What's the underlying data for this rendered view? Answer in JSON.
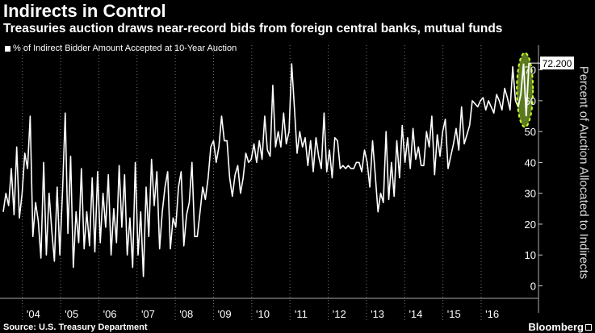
{
  "header": {
    "title": "Indirects in Control",
    "subtitle": "Treasuries auction draws near-record bids from foreign central banks, mutual funds"
  },
  "footer": {
    "source": "Source: U.S. Treasury Department",
    "brand": "Bloomberg"
  },
  "colors": {
    "background": "#000000",
    "line": "#ffffff",
    "highlight_fill": "#6b8e23",
    "highlight_stroke": "#ccff33"
  },
  "chart_data": {
    "type": "line",
    "title": "Indirects in Control",
    "subtitle": "Treasuries auction draws near-record bids from foreign central banks, mutual funds",
    "ylabel": "Percent of Auction Allocated to Indirects",
    "xlabel": "",
    "ylim": [
      -3,
      78
    ],
    "yticks": [
      0,
      10,
      20,
      30,
      40,
      50,
      60,
      70
    ],
    "xlim": [
      2003.0,
      2017.0
    ],
    "xticks": [
      {
        "label": "'04",
        "x": 2004.0
      },
      {
        "label": "'05",
        "x": 2005.0
      },
      {
        "label": "'06",
        "x": 2006.0
      },
      {
        "label": "'07",
        "x": 2007.0
      },
      {
        "label": "'08",
        "x": 2008.0
      },
      {
        "label": "'09",
        "x": 2009.0
      },
      {
        "label": "'10",
        "x": 2010.0
      },
      {
        "label": "'11",
        "x": 2011.0
      },
      {
        "label": "'12",
        "x": 2012.0
      },
      {
        "label": "'13",
        "x": 2013.0
      },
      {
        "label": "'14",
        "x": 2014.0
      },
      {
        "label": "'15",
        "x": 2015.0
      },
      {
        "label": "'16",
        "x": 2016.0
      }
    ],
    "grid": false,
    "legend_position": "top-left",
    "series": [
      {
        "name": "% of Indirect Bidder Amount Accepted at 10-Year Auction",
        "values": [
          24,
          30,
          26,
          38,
          23,
          45,
          22,
          30,
          43,
          38,
          55,
          16,
          27,
          21,
          9,
          40,
          10,
          30,
          18,
          8,
          32,
          10,
          31,
          56,
          17,
          42,
          6,
          24,
          14,
          38,
          12,
          24,
          13,
          35,
          11,
          37,
          14,
          30,
          19,
          36,
          10,
          25,
          14,
          39,
          19,
          36,
          10,
          22,
          6,
          40,
          10,
          24,
          3,
          32,
          16,
          41,
          26,
          37,
          12,
          24,
          32,
          37,
          12,
          22,
          19,
          32,
          37,
          13,
          23,
          27,
          40,
          16,
          16,
          24,
          32,
          28,
          35,
          45,
          47,
          40,
          45,
          55,
          47,
          47,
          35,
          29,
          36,
          39,
          30,
          35,
          43,
          40,
          41,
          46,
          40,
          47,
          41,
          55,
          44,
          42,
          65,
          45,
          50,
          45,
          56,
          46,
          50,
          72,
          58,
          43,
          50,
          45,
          48,
          39,
          47,
          37,
          48,
          42,
          38,
          56,
          37,
          44,
          35,
          48,
          47,
          38,
          39,
          38,
          39,
          38,
          38,
          40,
          40,
          37,
          44,
          40,
          32,
          47,
          36,
          24,
          30,
          27,
          50,
          28,
          40,
          29,
          47,
          35,
          52,
          40,
          48,
          38,
          51,
          41,
          45,
          39,
          39,
          50,
          45,
          55,
          36,
          49,
          42,
          50,
          54,
          38,
          42,
          46,
          51,
          44,
          58,
          46,
          49,
          52,
          60,
          59,
          58,
          60,
          61,
          57,
          60,
          58,
          56,
          62,
          60,
          57,
          64,
          61,
          57,
          71,
          60,
          58,
          62,
          72,
          55,
          72.2
        ]
      }
    ],
    "last_value_label": "72.200"
  }
}
